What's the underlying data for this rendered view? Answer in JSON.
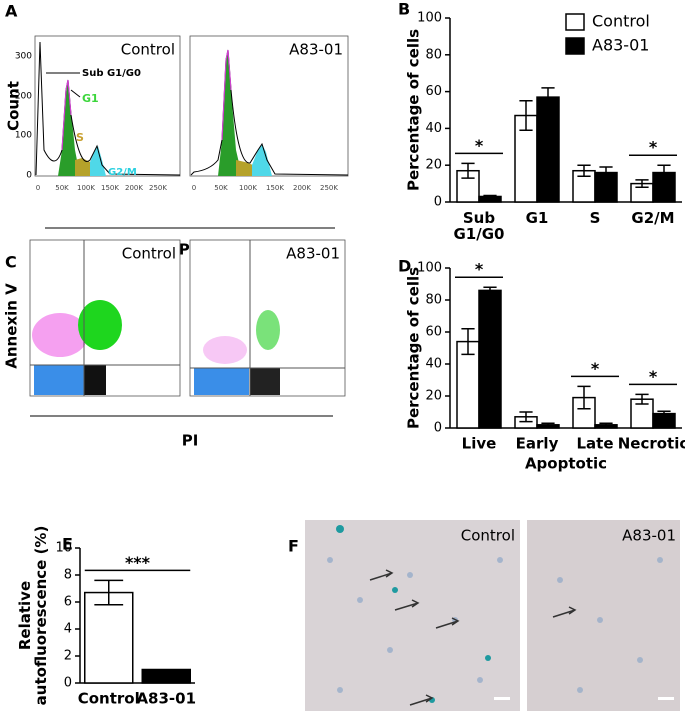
{
  "panel_labels": [
    "A",
    "B",
    "C",
    "D",
    "E",
    "F"
  ],
  "panel_a": {
    "samples": [
      "Control",
      "A83-01"
    ],
    "y_label": "Count",
    "x_label": "PI",
    "phases": [
      "Sub G1/G0",
      "G1",
      "S",
      "G2/M"
    ],
    "y_tick_labels": [
      "0",
      "100",
      "200",
      "300"
    ],
    "x_tick_labels": [
      "0",
      "50K",
      "100K",
      "150K",
      "200K",
      "250K"
    ]
  },
  "panel_c": {
    "samples": [
      "Control",
      "A83-01"
    ],
    "y_label": "Annexin V",
    "x_label": "PI"
  },
  "panel_f": {
    "samples": [
      "Control",
      "A83-01"
    ]
  },
  "chart_data": [
    {
      "type": "bar",
      "y_label": "Percentage of cells",
      "categories": [
        "Sub G1/G0",
        "G1",
        "S",
        "G2/M"
      ],
      "series": [
        {
          "name": "Control",
          "color": "#ffffff",
          "values": [
            17,
            47,
            17,
            10
          ],
          "errors": [
            4,
            8,
            3,
            2
          ]
        },
        {
          "name": "A83-01",
          "color": "#000000",
          "values": [
            3,
            57,
            16,
            16
          ],
          "errors": [
            0.5,
            5,
            3,
            4
          ]
        }
      ],
      "ylim": [
        0,
        100
      ],
      "yticks": [
        0,
        20,
        40,
        60,
        80,
        100
      ],
      "legend": "upper right",
      "annotations": [
        {
          "text": "*",
          "category": "Sub G1/G0"
        },
        {
          "text": "*",
          "category": "G2/M"
        }
      ]
    },
    {
      "type": "bar",
      "y_label": "Percentage of cells",
      "x_label": "Apoptotic",
      "categories": [
        "Live",
        "Early",
        "Late",
        "Necrotic"
      ],
      "series": [
        {
          "color": "#ffffff",
          "values": [
            54,
            7,
            19,
            18
          ],
          "errors": [
            8,
            3,
            7,
            3
          ]
        },
        {
          "color": "#000000",
          "values": [
            86,
            2,
            2,
            9
          ],
          "errors": [
            2,
            1,
            1,
            1.5
          ]
        }
      ],
      "ylim": [
        0,
        100
      ],
      "yticks": [
        0,
        20,
        40,
        60,
        80,
        100
      ],
      "annotations": [
        {
          "text": "*",
          "category": "Live"
        },
        {
          "text": "*",
          "category": "Late"
        },
        {
          "text": "*",
          "category": "Necrotic"
        }
      ]
    },
    {
      "type": "bar",
      "y_label": "Relative autofluorescence (%)",
      "categories": [
        "Control",
        "A83-01"
      ],
      "series": [
        {
          "colors": [
            "#ffffff",
            "#000000"
          ],
          "values": [
            6.7,
            1.0
          ],
          "errors": [
            0.9,
            0
          ]
        }
      ],
      "ylim": [
        0,
        10
      ],
      "yticks": [
        0,
        2,
        4,
        6,
        8,
        10
      ],
      "annotations": [
        {
          "text": "***"
        }
      ]
    }
  ]
}
